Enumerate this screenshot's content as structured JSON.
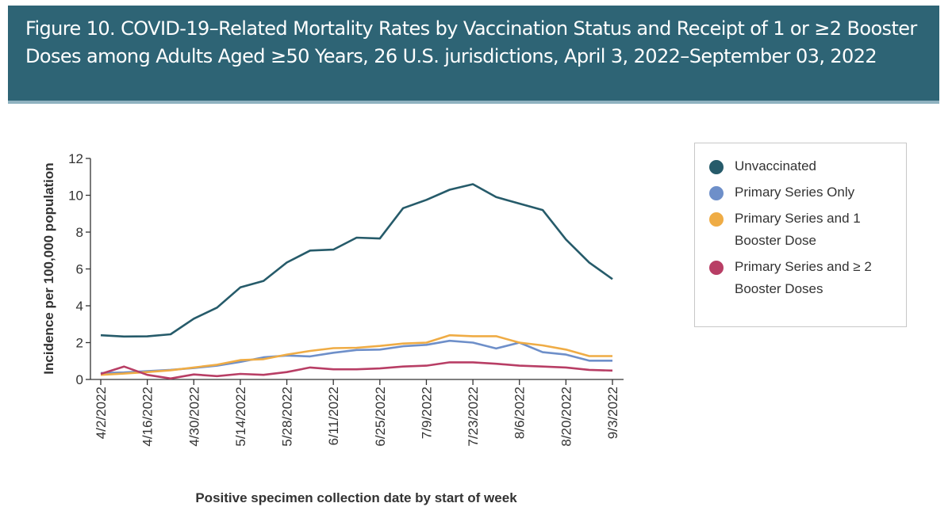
{
  "header": {
    "title": "Figure 10. COVID-19–Related Mortality Rates by Vaccination Status and Receipt of 1 or ≥2 Booster Doses among Adults Aged ≥50 Years, 26 U.S. jurisdictions, April 3, 2022–September 03, 2022"
  },
  "chart_data": {
    "type": "line",
    "title": "Figure 10. COVID-19–Related Mortality Rates by Vaccination Status and Receipt of 1 or ≥2 Booster Doses among Adults Aged ≥50 Years, 26 U.S. jurisdictions, April 3, 2022–September 03, 2022",
    "xlabel": "Positive specimen collection date by start of week",
    "ylabel": "Incidence per 100,000 population",
    "ylim": [
      0,
      12
    ],
    "yticks": [
      "0",
      "2",
      "4",
      "6",
      "8",
      "10",
      "12"
    ],
    "x": [
      "4/2/2022",
      "4/9/2022",
      "4/16/2022",
      "4/23/2022",
      "4/30/2022",
      "5/7/2022",
      "5/14/2022",
      "5/21/2022",
      "5/28/2022",
      "6/4/2022",
      "6/11/2022",
      "6/18/2022",
      "6/25/2022",
      "7/2/2022",
      "7/9/2022",
      "7/16/2022",
      "7/23/2022",
      "7/30/2022",
      "8/6/2022",
      "8/13/2022",
      "8/20/2022",
      "8/27/2022",
      "9/3/2022"
    ],
    "xticks": [
      "4/2/2022",
      "4/16/2022",
      "4/30/2022",
      "5/14/2022",
      "5/28/2022",
      "6/11/2022",
      "6/25/2022",
      "7/9/2022",
      "7/23/2022",
      "8/6/2022",
      "8/20/2022",
      "9/3/2022"
    ],
    "grid": false,
    "legend_position": "right",
    "series": [
      {
        "name": "Unvaccinated",
        "color": "#265b6a",
        "values": [
          2.4,
          2.33,
          2.34,
          2.45,
          3.3,
          3.9,
          5.0,
          5.35,
          6.35,
          7.0,
          7.05,
          7.7,
          7.65,
          9.3,
          9.75,
          10.3,
          10.6,
          9.9,
          9.55,
          9.2,
          7.6,
          6.35,
          5.45
        ]
      },
      {
        "name": "Primary Series Only",
        "color": "#6e8fc9",
        "values": [
          0.35,
          0.38,
          0.45,
          0.52,
          0.62,
          0.75,
          0.95,
          1.2,
          1.3,
          1.25,
          1.45,
          1.6,
          1.62,
          1.8,
          1.88,
          2.1,
          2.0,
          1.68,
          2.0,
          1.48,
          1.35,
          1.02,
          1.02
        ]
      },
      {
        "name": "Primary Series and 1 Booster Dose",
        "color": "#efac45",
        "values": [
          0.25,
          0.32,
          0.4,
          0.5,
          0.65,
          0.8,
          1.05,
          1.1,
          1.35,
          1.55,
          1.7,
          1.72,
          1.82,
          1.95,
          2.0,
          2.4,
          2.35,
          2.35,
          2.0,
          1.85,
          1.62,
          1.27,
          1.27
        ]
      },
      {
        "name": "Primary Series and ≥ 2 Booster Doses",
        "color": "#b83e65",
        "values": [
          0.3,
          0.7,
          0.25,
          0.05,
          0.27,
          0.18,
          0.3,
          0.25,
          0.4,
          0.65,
          0.55,
          0.55,
          0.6,
          0.7,
          0.75,
          0.93,
          0.93,
          0.85,
          0.75,
          0.7,
          0.65,
          0.52,
          0.48
        ]
      }
    ]
  },
  "legend": {
    "items": [
      {
        "label": "Unvaccinated",
        "color": "#265b6a"
      },
      {
        "label": "Primary Series Only",
        "color": "#6e8fc9"
      },
      {
        "label": "Primary Series and 1 Booster Dose",
        "color": "#efac45"
      },
      {
        "label": "Primary Series and ≥ 2 Booster Doses",
        "color": "#b83e65"
      }
    ]
  }
}
